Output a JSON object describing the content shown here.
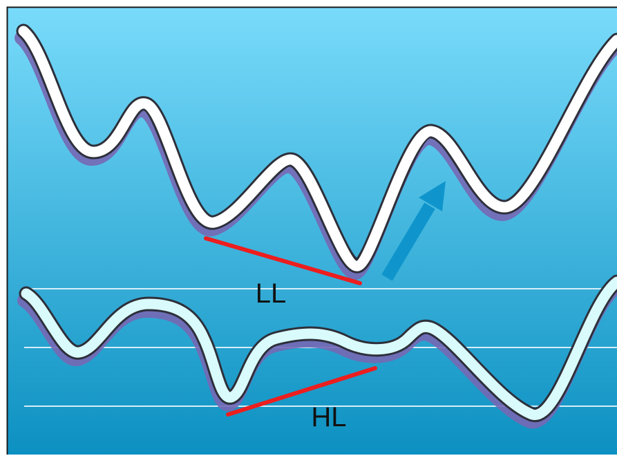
{
  "diagram": {
    "labels": {
      "lower_low": "LL",
      "higher_low": "HL"
    },
    "colors": {
      "bg_top": "#79dbfb",
      "bg_bottom": "#0a8fc0",
      "price_line": "#ffffff",
      "oscillator_line": "#d9fbfb",
      "line_outline": "#2d2f3a",
      "line_shadow": "#7668b4",
      "divergence_line": "#ec1e1e",
      "arrow": "#0f95cc",
      "guide_line": "#d4eef8",
      "frame": "#1a1a1a"
    }
  }
}
